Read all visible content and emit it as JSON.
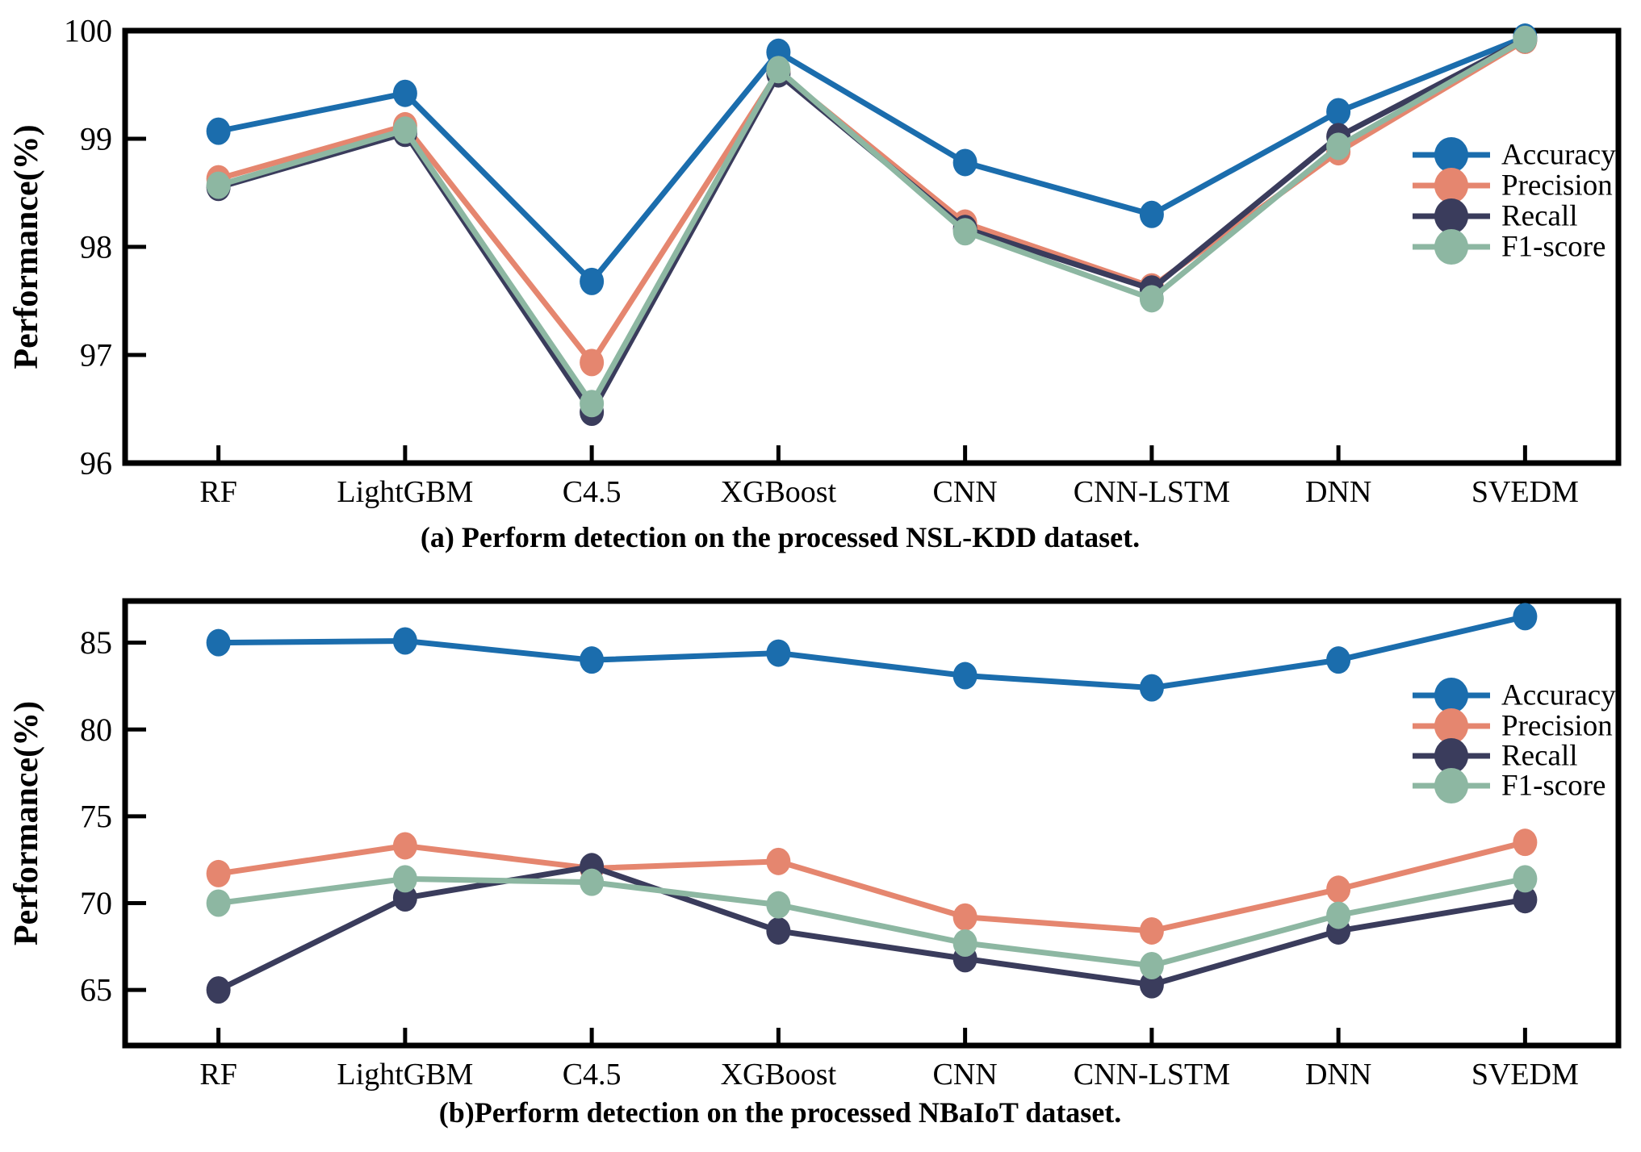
{
  "figure": {
    "background": "#ffffff",
    "series_names": [
      "Accuracy",
      "Precision",
      "Recall",
      "F1-score"
    ],
    "colors": {
      "accuracy": "#1b6dad",
      "precision": "#e5866f",
      "recall": "#3a3c5c",
      "f1": "#8db7a2",
      "axis": "#000000"
    }
  },
  "chart_data": [
    {
      "type": "line",
      "id": "a",
      "caption": "(a) Perform detection on the processed NSL-KDD dataset.",
      "ylabel": "Performance(%)",
      "xlabel": "",
      "grid": false,
      "legend_position": "right-inside",
      "categories": [
        "RF",
        "LightGBM",
        "C4.5",
        "XGBoost",
        "CNN",
        "CNN-LSTM",
        "DNN",
        "SVEDM"
      ],
      "ylim": [
        96,
        100
      ],
      "yticks": [
        96,
        97,
        98,
        99,
        100
      ],
      "series": [
        {
          "name": "Accuracy",
          "color": "#1b6dad",
          "values": [
            99.07,
            99.42,
            97.68,
            99.8,
            98.78,
            98.3,
            99.25,
            99.94
          ]
        },
        {
          "name": "Precision",
          "color": "#e5866f",
          "values": [
            98.63,
            99.12,
            96.93,
            99.62,
            98.22,
            97.63,
            98.88,
            99.91
          ]
        },
        {
          "name": "Recall",
          "color": "#3a3c5c",
          "values": [
            98.55,
            99.05,
            96.47,
            99.6,
            98.17,
            97.61,
            99.02,
            99.92
          ]
        },
        {
          "name": "F1-score",
          "color": "#8db7a2",
          "values": [
            98.57,
            99.08,
            96.55,
            99.64,
            98.14,
            97.52,
            98.93,
            99.92
          ]
        }
      ]
    },
    {
      "type": "line",
      "id": "b",
      "caption": "(b)Perform detection on the processed NBaIoT dataset.",
      "ylabel": "Performance(%)",
      "xlabel": "",
      "grid": false,
      "legend_position": "right-inside",
      "categories": [
        "RF",
        "LightGBM",
        "C4.5",
        "XGBoost",
        "CNN",
        "CNN-LSTM",
        "DNN",
        "SVEDM"
      ],
      "ylim": [
        61.8,
        87.4
      ],
      "yticks": [
        65,
        70,
        75,
        80,
        85
      ],
      "series": [
        {
          "name": "Accuracy",
          "color": "#1b6dad",
          "values": [
            85.0,
            85.1,
            84.0,
            84.4,
            83.1,
            82.4,
            84.0,
            86.5
          ]
        },
        {
          "name": "Precision",
          "color": "#e5866f",
          "values": [
            71.7,
            73.3,
            72.0,
            72.4,
            69.2,
            68.4,
            70.8,
            73.5
          ]
        },
        {
          "name": "Recall",
          "color": "#3a3c5c",
          "values": [
            65.0,
            70.3,
            72.1,
            68.4,
            66.8,
            65.3,
            68.4,
            70.2
          ]
        },
        {
          "name": "F1-score",
          "color": "#8db7a2",
          "values": [
            70.0,
            71.4,
            71.2,
            69.9,
            67.7,
            66.4,
            69.3,
            71.4
          ]
        }
      ]
    }
  ]
}
